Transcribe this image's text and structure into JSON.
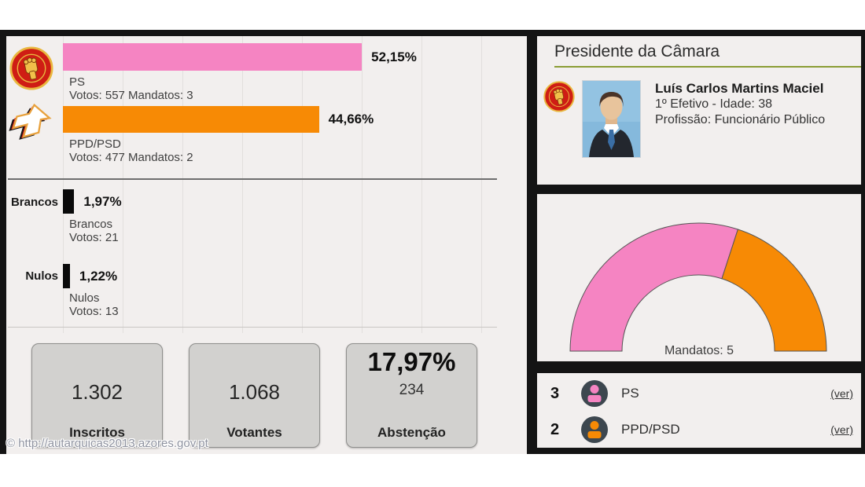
{
  "watermark": "© http://autarquicas2013.azores.gov.pt",
  "theme": {
    "heading_underline": "#8a9c33",
    "ps_pink": "#f584c2",
    "psd_orange": "#f78a05"
  },
  "chart_data": [
    {
      "type": "bar",
      "orientation": "horizontal",
      "unit": "%",
      "xlim": [
        0,
        80
      ],
      "grid": true,
      "bars": [
        {
          "name": "PS",
          "value": 52.15,
          "percent_label": "52,15%",
          "votes": 557,
          "mandates": 3,
          "sub1": "PS",
          "sub2": "Votos: 557 Mandatos: 3",
          "color": "#f584c2",
          "left_label": ""
        },
        {
          "name": "PPD/PSD",
          "value": 44.66,
          "percent_label": "44,66%",
          "votes": 477,
          "mandates": 2,
          "sub1": "PPD/PSD",
          "sub2": "Votos: 477 Mandatos: 2",
          "color": "#f78a05",
          "left_label": ""
        },
        {
          "name": "Brancos",
          "value": 1.97,
          "percent_label": "1,97%",
          "votes": 21,
          "sub1": "Brancos",
          "sub2": "Votos: 21",
          "color": "#0a0a0a",
          "left_label": "Brancos"
        },
        {
          "name": "Nulos",
          "value": 1.22,
          "percent_label": "1,22%",
          "votes": 13,
          "sub1": "Nulos",
          "sub2": "Votos: 13",
          "color": "#0a0a0a",
          "left_label": "Nulos"
        }
      ]
    },
    {
      "type": "pie",
      "variant": "semi-donut",
      "label": "Mandatos: 5",
      "total": 5,
      "segments": [
        {
          "name": "PS",
          "value": 3,
          "color": "#f584c2"
        },
        {
          "name": "PPD/PSD",
          "value": 2,
          "color": "#f78a05"
        }
      ]
    }
  ],
  "summary_boxes": [
    {
      "value": "1.302",
      "label": "Inscritos"
    },
    {
      "value": "1.068",
      "label": "Votantes"
    },
    {
      "value": "17,97%",
      "secondary": "234",
      "label": "Abstenção"
    }
  ],
  "president": {
    "title": "Presidente da Câmara",
    "name": "Luís Carlos Martins Maciel",
    "detail1": "1º Efetivo - Idade: 38",
    "detail2": "Profissão: Funcionário Público"
  },
  "mandate_list": [
    {
      "count": "3",
      "party": "PS",
      "link": "(ver)",
      "color": "#f584c2"
    },
    {
      "count": "2",
      "party": "PPD/PSD",
      "link": "(ver)",
      "color": "#f78a05"
    }
  ]
}
